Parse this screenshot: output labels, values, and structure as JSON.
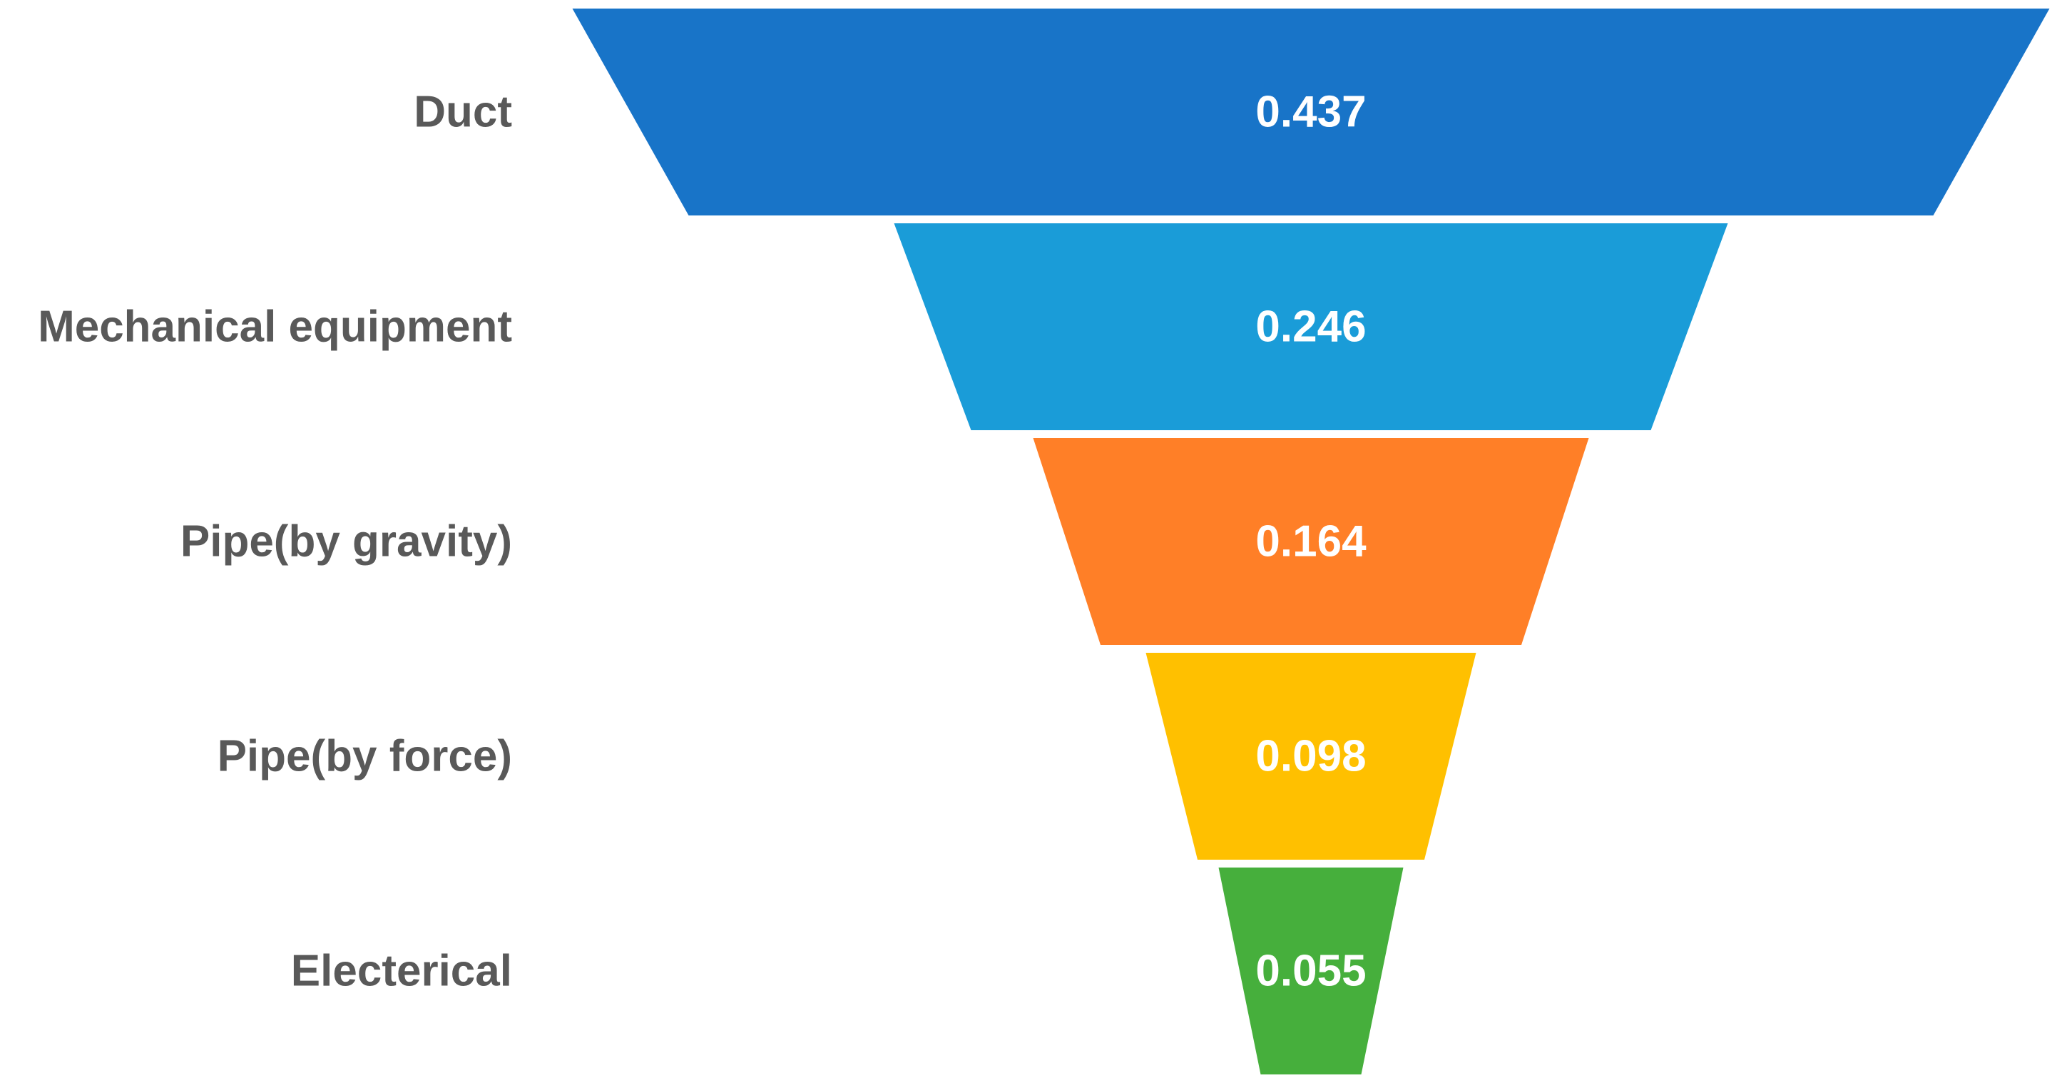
{
  "chart_data": {
    "type": "funnel",
    "title": "",
    "categories": [
      "Duct",
      "Mechanical equipment",
      "Pipe(by gravity)",
      "Pipe(by force)",
      "Electerical"
    ],
    "values": [
      0.437,
      0.246,
      0.164,
      0.098,
      0.055
    ],
    "value_labels": [
      "0.437",
      "0.246",
      "0.164",
      "0.098",
      "0.055"
    ],
    "colors": [
      "#1874C8",
      "#1A9CD8",
      "#FF7F27",
      "#FFC000",
      "#46AF3C"
    ],
    "label_color": "#595959",
    "value_label_color": "#FFFFFF",
    "legend": false,
    "grid": false
  }
}
